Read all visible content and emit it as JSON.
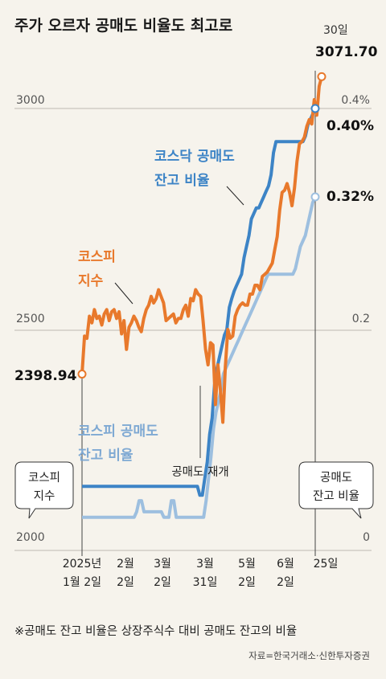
{
  "title": "주가 오르자 공매도 비율도 최고로",
  "end_day_label": "30일",
  "end_value_label": "3071.70",
  "start_value_label": "2398.94",
  "left_axis": {
    "top": "3000",
    "mid": "2500",
    "bottom": "2000"
  },
  "right_axis": {
    "top": "0.4%",
    "mid": "0.2",
    "bottom": "0"
  },
  "kosdaq_end_label": "0.40%",
  "kospi_short_end_label": "0.32%",
  "labels": {
    "kosdaq_ratio": [
      "코스닥 공매도",
      "잔고 비율"
    ],
    "kospi_index": [
      "코스피",
      "지수"
    ],
    "kospi_ratio": [
      "코스피 공매도",
      "잔고 비율"
    ],
    "resume": "공매도 재개"
  },
  "bubbles": {
    "left": [
      "코스피",
      "지수"
    ],
    "right": [
      "공매도",
      "잔고 비율"
    ]
  },
  "x_ticks": [
    {
      "top": "2025년",
      "bottom": "1월 2일"
    },
    {
      "top": "2월",
      "bottom": "2일"
    },
    {
      "top": "3월",
      "bottom": "2일"
    },
    {
      "top": "3월",
      "bottom": "31일"
    },
    {
      "top": "5월",
      "bottom": "2일"
    },
    {
      "top": "6월",
      "bottom": "2일"
    },
    {
      "top": "25일",
      "bottom": ""
    }
  ],
  "footnote": "※공매도 잔고 비율은 상장주식수 대비 공매도 잔고의 비율",
  "source": "자료=한국거래소·신한투자증권",
  "colors": {
    "kospi": "#e8792c",
    "kosdaq_ratio": "#3d84c6",
    "kospi_ratio": "#9dbfdf",
    "grid": "#bdbab2"
  },
  "chart_data": {
    "type": "line",
    "x_labels": [
      "2025년 1월 2일",
      "2월 2일",
      "3월 2일",
      "3월 31일",
      "5월 2일",
      "6월 2일",
      "25일",
      "30일"
    ],
    "left_ylim": [
      2000,
      3000
    ],
    "right_ylim": [
      0,
      0.4
    ],
    "series": [
      {
        "name": "코스피 지수",
        "axis": "left",
        "values": [
          2399,
          2485,
          2480,
          2530,
          2515,
          2545,
          2525,
          2530,
          2510,
          2535,
          2545,
          2520,
          2540,
          2545,
          2525,
          2540,
          2490,
          2520,
          2455,
          2505,
          2515,
          2530,
          2520,
          2505,
          2495,
          2525,
          2545,
          2555,
          2575,
          2560,
          2570,
          2590,
          2575,
          2560,
          2520,
          2525,
          2530,
          2535,
          2515,
          2525,
          2525,
          2545,
          2555,
          2530,
          2570,
          2565,
          2590,
          2580,
          2575,
          2520,
          2455,
          2420,
          2470,
          2465,
          2330,
          2420,
          2365,
          2290,
          2415,
          2500,
          2480,
          2485,
          2530,
          2545,
          2555,
          2560,
          2555,
          2555,
          2580,
          2580,
          2600,
          2600,
          2590,
          2620,
          2625,
          2630,
          2640,
          2650,
          2680,
          2710,
          2770,
          2810,
          2815,
          2830,
          2810,
          2780,
          2820,
          2880,
          2920,
          2925,
          2935,
          2960,
          2975,
          2965,
          3020,
          2985,
          3050,
          3072
        ]
      },
      {
        "name": "코스닥 공매도 잔고 비율",
        "axis": "right",
        "values": [
          0.058,
          0.058,
          0.058,
          0.058,
          0.058,
          0.058,
          0.058,
          0.058,
          0.058,
          0.058,
          0.058,
          0.058,
          0.058,
          0.058,
          0.058,
          0.058,
          0.058,
          0.058,
          0.058,
          0.058,
          0.058,
          0.058,
          0.058,
          0.058,
          0.058,
          0.058,
          0.058,
          0.058,
          0.058,
          0.058,
          0.058,
          0.058,
          0.058,
          0.058,
          0.058,
          0.058,
          0.058,
          0.058,
          0.058,
          0.058,
          0.058,
          0.058,
          0.058,
          0.058,
          0.058,
          0.058,
          0.058,
          0.058,
          0.05,
          0.05,
          0.065,
          0.08,
          0.105,
          0.12,
          0.15,
          0.165,
          0.175,
          0.185,
          0.195,
          0.2,
          0.22,
          0.228,
          0.235,
          0.24,
          0.245,
          0.25,
          0.265,
          0.275,
          0.285,
          0.3,
          0.305,
          0.31,
          0.31,
          0.315,
          0.32,
          0.325,
          0.33,
          0.34,
          0.36,
          0.37,
          0.37,
          0.37,
          0.37,
          0.37,
          0.37,
          0.37,
          0.37,
          0.37,
          0.37,
          0.37,
          0.37,
          0.375,
          0.385,
          0.39,
          0.395,
          0.4
        ]
      },
      {
        "name": "코스피 공매도 잔고 비율",
        "axis": "right",
        "values": [
          0.03,
          0.03,
          0.03,
          0.03,
          0.03,
          0.03,
          0.03,
          0.03,
          0.03,
          0.03,
          0.03,
          0.03,
          0.03,
          0.03,
          0.03,
          0.03,
          0.03,
          0.03,
          0.03,
          0.03,
          0.03,
          0.03,
          0.035,
          0.045,
          0.045,
          0.035,
          0.035,
          0.035,
          0.035,
          0.035,
          0.035,
          0.035,
          0.035,
          0.03,
          0.03,
          0.03,
          0.045,
          0.045,
          0.03,
          0.03,
          0.03,
          0.03,
          0.03,
          0.03,
          0.03,
          0.03,
          0.03,
          0.03,
          0.03,
          0.03,
          0.045,
          0.065,
          0.085,
          0.11,
          0.125,
          0.135,
          0.145,
          0.16,
          0.165,
          0.17,
          0.175,
          0.18,
          0.185,
          0.19,
          0.195,
          0.2,
          0.205,
          0.21,
          0.215,
          0.22,
          0.225,
          0.23,
          0.235,
          0.24,
          0.245,
          0.25,
          0.25,
          0.25,
          0.25,
          0.25,
          0.25,
          0.25,
          0.25,
          0.25,
          0.25,
          0.25,
          0.255,
          0.265,
          0.275,
          0.28,
          0.285,
          0.295,
          0.305,
          0.315,
          0.32
        ]
      }
    ]
  }
}
